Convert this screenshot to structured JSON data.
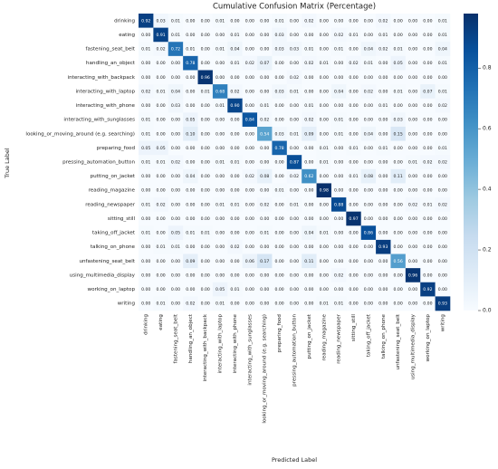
{
  "chart_data": {
    "type": "heatmap",
    "title": "Cumulative Confusion Matrix (Percentage)",
    "x_label": "Predicted Label",
    "y_label": "True Label",
    "categories": [
      "drinking",
      "eating",
      "fastening_seat_belt",
      "handling_an_object",
      "interacting_with_backpack",
      "interacting_with_laptop",
      "interacting_with_phone",
      "interacting_with_sunglasses",
      "looking_or_moving_around (e.g. searching)",
      "preparing_food",
      "pressing_automation_button",
      "putting_on_jacket",
      "reading_magazine",
      "reading_newspaper",
      "sitting_still",
      "taking_off_jacket",
      "talking_on_phone",
      "unfastening_seat_belt",
      "using_multimedia_display",
      "working_on_laptop",
      "writing"
    ],
    "values": [
      [
        0.92,
        0.03,
        0.01,
        0,
        0,
        0.01,
        0,
        0,
        0,
        0.01,
        0,
        0.02,
        0,
        0,
        0,
        0,
        0.02,
        0,
        0,
        0,
        0.01
      ],
      [
        0,
        0.91,
        0.01,
        0,
        0,
        0,
        0.01,
        0,
        0,
        0.03,
        0,
        0,
        0,
        0.02,
        0.01,
        0,
        0.01,
        0,
        0,
        0,
        0.01
      ],
      [
        0.01,
        0.02,
        0.72,
        0.01,
        0,
        0.01,
        0.04,
        0,
        0,
        0.03,
        0.03,
        0.01,
        0,
        0.01,
        0,
        0.04,
        0.02,
        0.01,
        0,
        0,
        0.04
      ],
      [
        0,
        0,
        0,
        0.78,
        0,
        0,
        0.01,
        0.02,
        0.07,
        0,
        0,
        0.02,
        0.01,
        0,
        0.02,
        0.01,
        0,
        0.05,
        0,
        0,
        0.01
      ],
      [
        0,
        0,
        0,
        0,
        0.96,
        0,
        0,
        0,
        0,
        0,
        0.02,
        0,
        0,
        0,
        0,
        0,
        0,
        0,
        0,
        0,
        0
      ],
      [
        0.02,
        0.01,
        0.04,
        0,
        0.01,
        0.68,
        0.02,
        0,
        0,
        0.03,
        0.01,
        0,
        0,
        0.04,
        0,
        0.02,
        0,
        0.01,
        0,
        0.07,
        0.01
      ],
      [
        0,
        0,
        0.03,
        0,
        0,
        0.01,
        0.9,
        0,
        0.01,
        0,
        0,
        0.01,
        0,
        0,
        0,
        0,
        0.01,
        0,
        0,
        0,
        0.02
      ],
      [
        0.01,
        0,
        0,
        0.05,
        0,
        0,
        0,
        0.84,
        0.02,
        0,
        0,
        0.02,
        0,
        0.01,
        0,
        0,
        0,
        0.03,
        0,
        0,
        0
      ],
      [
        0.01,
        0,
        0,
        0.1,
        0,
        0,
        0,
        0,
        0.54,
        0.03,
        0.01,
        0.09,
        0,
        0.01,
        0,
        0.04,
        0,
        0.15,
        0,
        0,
        0
      ],
      [
        0.05,
        0.05,
        0,
        0,
        0,
        0,
        0,
        0,
        0,
        0.78,
        0,
        0,
        0.01,
        0,
        0.01,
        0,
        0.01,
        0,
        0,
        0,
        0.01
      ],
      [
        0.01,
        0.01,
        0.02,
        0,
        0,
        0.01,
        0.01,
        0,
        0,
        0,
        0.87,
        0,
        0.01,
        0,
        0,
        0,
        0,
        0,
        0.01,
        0.02,
        0.02
      ],
      [
        0,
        0,
        0,
        0.04,
        0,
        0,
        0,
        0.02,
        0.08,
        0,
        0.02,
        0.62,
        0,
        0,
        0.01,
        0.08,
        0,
        0.11,
        0,
        0,
        0
      ],
      [
        0,
        0,
        0,
        0,
        0,
        0,
        0,
        0,
        0,
        0.01,
        0,
        0,
        0.98,
        0,
        0,
        0,
        0,
        0,
        0,
        0,
        0
      ],
      [
        0.01,
        0.02,
        0,
        0,
        0,
        0.01,
        0.01,
        0,
        0.02,
        0,
        0.01,
        0,
        0,
        0.88,
        0,
        0,
        0,
        0,
        0.02,
        0.01,
        0.02
      ],
      [
        0,
        0,
        0,
        0,
        0,
        0,
        0,
        0,
        0,
        0,
        0,
        0,
        0,
        0,
        0.97,
        0,
        0,
        0,
        0,
        0,
        0
      ],
      [
        0.01,
        0,
        0.05,
        0.01,
        0.01,
        0,
        0,
        0,
        0.01,
        0,
        0,
        0.04,
        0.01,
        0,
        0,
        0.86,
        0,
        0,
        0,
        0,
        0
      ],
      [
        0,
        0.01,
        0.01,
        0,
        0,
        0,
        0.02,
        0,
        0,
        0,
        0,
        0,
        0,
        0,
        0,
        0,
        0.93,
        0,
        0,
        0,
        0
      ],
      [
        0,
        0,
        0,
        0.09,
        0,
        0,
        0,
        0.06,
        0.17,
        0,
        0,
        0.11,
        0,
        0,
        0,
        0,
        0,
        0.56,
        0,
        0,
        0
      ],
      [
        0,
        0,
        0,
        0,
        0,
        0,
        0,
        0,
        0,
        0,
        0,
        0,
        0,
        0.02,
        0,
        0,
        0,
        0,
        0.96,
        0,
        0
      ],
      [
        0,
        0,
        0,
        0,
        0,
        0.05,
        0.01,
        0,
        0,
        0,
        0,
        0,
        0,
        0,
        0,
        0,
        0,
        0,
        0,
        0.92,
        0
      ],
      [
        0,
        0.01,
        0,
        0.02,
        0,
        0.01,
        0,
        0,
        0,
        0,
        0,
        0,
        0.01,
        0.01,
        0,
        0,
        0,
        0,
        0,
        0,
        0.93
      ]
    ],
    "value_labels": [
      [
        "0.92",
        "0.03",
        "0.01",
        "0.00",
        "0.00",
        "0.01",
        "0.00",
        "0.00",
        "0.00",
        "0.01",
        "0.00",
        "0.02",
        "0.00",
        "0.00",
        "0.00",
        "0.00",
        "0.02",
        "0.00",
        "0.00",
        "0.00",
        "0.01"
      ],
      [
        "0.00",
        "0.91",
        "0.01",
        "0.00",
        "0.00",
        "0.00",
        "0.01",
        "0.00",
        "0.00",
        "0.03",
        "0.00",
        "0.00",
        "0.00",
        "0.02",
        "0.01",
        "0.00",
        "0.01",
        "0.00",
        "0.00",
        "0.00",
        "0.01"
      ],
      [
        "0.01",
        "0.02",
        "0.72",
        "0.01",
        "0.00",
        "0.01",
        "0.04",
        "0.00",
        "0.00",
        "0.03",
        "0.03",
        "0.01",
        "0.00",
        "0.01",
        "0.00",
        "0.04",
        "0.02",
        "0.01",
        "0.00",
        "0.00",
        "0.04"
      ],
      [
        "0.00",
        "0.00",
        "0.00",
        "0.78",
        "0.00",
        "0.00",
        "0.01",
        "0.02",
        "0.07",
        "0.00",
        "0.00",
        "0.02",
        "0.01",
        "0.00",
        "0.02",
        "0.01",
        "0.00",
        "0.05",
        "0.00",
        "0.00",
        "0.01"
      ],
      [
        "0.00",
        "0.00",
        "0.00",
        "0.00",
        "0.96",
        "0.00",
        "0.00",
        "0.00",
        "0.00",
        "0.00",
        "0.02",
        "0.00",
        "0.00",
        "0.00",
        "0.00",
        "0.00",
        "0.00",
        "0.00",
        "0.00",
        "0.00",
        "0.00"
      ],
      [
        "0.02",
        "0.01",
        "0.04",
        "0.00",
        "0.01",
        "0.68",
        "0.02",
        "0.00",
        "0.00",
        "0.03",
        "0.01",
        "0.00",
        "0.00",
        "0.04",
        "0.00",
        "0.02",
        "0.00",
        "0.01",
        "0.00",
        "0.07",
        "0.01"
      ],
      [
        "0.00",
        "0.00",
        "0.03",
        "0.00",
        "0.00",
        "0.01",
        "0.90",
        "0.00",
        "0.01",
        "0.00",
        "0.00",
        "0.01",
        "0.00",
        "0.00",
        "0.00",
        "0.00",
        "0.01",
        "0.00",
        "0.00",
        "0.00",
        "0.02"
      ],
      [
        "0.01",
        "0.00",
        "0.00",
        "0.05",
        "0.00",
        "0.00",
        "0.00",
        "0.84",
        "0.02",
        "0.00",
        "0.00",
        "0.02",
        "0.00",
        "0.01",
        "0.00",
        "0.00",
        "0.00",
        "0.03",
        "0.00",
        "0.00",
        "0.00"
      ],
      [
        "0.01",
        "0.00",
        "0.00",
        "0.10",
        "0.00",
        "0.00",
        "0.00",
        "0.00",
        "0.54",
        "0.03",
        "0.01",
        "0.09",
        "0.00",
        "0.01",
        "0.00",
        "0.04",
        "0.00",
        "0.15",
        "0.00",
        "0.00",
        "0.00"
      ],
      [
        "0.05",
        "0.05",
        "0.00",
        "0.00",
        "0.00",
        "0.00",
        "0.00",
        "0.00",
        "0.00",
        "0.78",
        "0.00",
        "0.00",
        "0.01",
        "0.00",
        "0.01",
        "0.00",
        "0.01",
        "0.00",
        "0.00",
        "0.00",
        "0.01"
      ],
      [
        "0.01",
        "0.01",
        "0.02",
        "0.00",
        "0.00",
        "0.01",
        "0.01",
        "0.00",
        "0.00",
        "0.00",
        "0.87",
        "0.00",
        "0.01",
        "0.00",
        "0.00",
        "0.00",
        "0.00",
        "0.00",
        "0.01",
        "0.02",
        "0.02"
      ],
      [
        "0.00",
        "0.00",
        "0.00",
        "0.04",
        "0.00",
        "0.00",
        "0.00",
        "0.02",
        "0.08",
        "0.00",
        "0.02",
        "0.62",
        "0.00",
        "0.00",
        "0.01",
        "0.08",
        "0.00",
        "0.11",
        "0.00",
        "0.00",
        "0.00"
      ],
      [
        "0.00",
        "0.00",
        "0.00",
        "0.00",
        "0.00",
        "0.00",
        "0.00",
        "0.00",
        "0.00",
        "0.01",
        "0.00",
        "0.00",
        "0.98",
        "0.00",
        "0.00",
        "0.00",
        "0.00",
        "0.00",
        "0.00",
        "0.00",
        "0.00"
      ],
      [
        "0.01",
        "0.02",
        "0.00",
        "0.00",
        "0.00",
        "0.01",
        "0.01",
        "0.00",
        "0.02",
        "0.00",
        "0.01",
        "0.00",
        "0.00",
        "0.88",
        "0.00",
        "0.00",
        "0.00",
        "0.00",
        "0.02",
        "0.01",
        "0.02"
      ],
      [
        "0.00",
        "0.00",
        "0.00",
        "0.00",
        "0.00",
        "0.00",
        "0.00",
        "0.00",
        "0.00",
        "0.00",
        "0.00",
        "0.00",
        "0.00",
        "0.00",
        "0.97",
        "0.00",
        "0.00",
        "0.00",
        "0.00",
        "0.00",
        "0.00"
      ],
      [
        "0.01",
        "0.00",
        "0.05",
        "0.01",
        "0.01",
        "0.00",
        "0.00",
        "0.00",
        "0.01",
        "0.00",
        "0.00",
        "0.04",
        "0.01",
        "0.00",
        "0.00",
        "0.86",
        "0.00",
        "0.00",
        "0.00",
        "0.00",
        "0.00"
      ],
      [
        "0.00",
        "0.01",
        "0.01",
        "0.00",
        "0.00",
        "0.00",
        "0.02",
        "0.00",
        "0.00",
        "0.00",
        "0.00",
        "0.00",
        "0.00",
        "0.00",
        "0.00",
        "0.00",
        "0.93",
        "0.00",
        "0.00",
        "0.00",
        "0.00"
      ],
      [
        "0.00",
        "0.00",
        "0.00",
        "0.09",
        "0.00",
        "0.00",
        "0.00",
        "0.06",
        "0.17",
        "0.00",
        "0.00",
        "0.11",
        "0.00",
        "0.00",
        "0.00",
        "0.00",
        "0.00",
        "0.56",
        "0.00",
        "0.00",
        "0.00"
      ],
      [
        "0.00",
        "0.00",
        "0.00",
        "0.00",
        "0.00",
        "0.00",
        "0.00",
        "0.00",
        "0.00",
        "0.00",
        "0.00",
        "0.00",
        "0.00",
        "0.02",
        "0.00",
        "0.00",
        "0.00",
        "0.00",
        "0.96",
        "0.00",
        "0.00"
      ],
      [
        "0.00",
        "0.00",
        "0.00",
        "0.00",
        "0.00",
        "0.05",
        "0.01",
        "0.00",
        "0.00",
        "0.00",
        "0.00",
        "0.00",
        "0.00",
        "0.00",
        "0.00",
        "0.00",
        "0.00",
        "0.00",
        "0.00",
        "0.92",
        "0.00"
      ],
      [
        "0.00",
        "0.01",
        "0.00",
        "0.02",
        "0.00",
        "0.01",
        "0.00",
        "0.00",
        "0.00",
        "0.00",
        "0.00",
        "0.00",
        "0.01",
        "0.01",
        "0.00",
        "0.00",
        "0.00",
        "0.00",
        "0.00",
        "0.00",
        "0.93"
      ]
    ],
    "colors": [
      "#f7fbff",
      "#deebf7",
      "#c6dbef",
      "#9ecae1",
      "#6baed6",
      "#4292c6",
      "#2171b5",
      "#08519c",
      "#08306b"
    ],
    "clim": [
      0,
      0.98
    ],
    "cticks": [
      {
        "value": 0,
        "label": "0.0"
      },
      0.2,
      0.4,
      0.6,
      0.8
    ]
  }
}
